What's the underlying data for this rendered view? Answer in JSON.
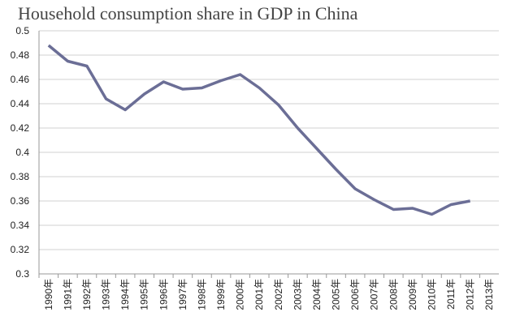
{
  "chart_data": {
    "type": "line",
    "title": "Household consumption share in GDP in China",
    "categories": [
      "1990年",
      "1991年",
      "1992年",
      "1993年",
      "1994年",
      "1995年",
      "1996年",
      "1997年",
      "1998年",
      "1999年",
      "2000年",
      "2001年",
      "2002年",
      "2003年",
      "2004年",
      "2005年",
      "2006年",
      "2007年",
      "2008年",
      "2009年",
      "2010年",
      "2011年",
      "2012年",
      "2013年"
    ],
    "series": [
      {
        "color": "#6b6e96",
        "values": [
          0.488,
          0.475,
          0.471,
          0.444,
          0.435,
          0.448,
          0.458,
          0.452,
          0.453,
          0.459,
          0.464,
          0.453,
          0.439,
          0.42,
          0.403,
          0.386,
          0.37,
          0.361,
          0.353,
          0.354,
          0.349,
          0.357,
          0.36,
          null
        ]
      }
    ],
    "ylim": [
      0.3,
      0.5
    ],
    "yticks": [
      0.3,
      0.32,
      0.34,
      0.36,
      0.38,
      0.4,
      0.42,
      0.44,
      0.46,
      0.48,
      0.5
    ],
    "grid": true
  }
}
